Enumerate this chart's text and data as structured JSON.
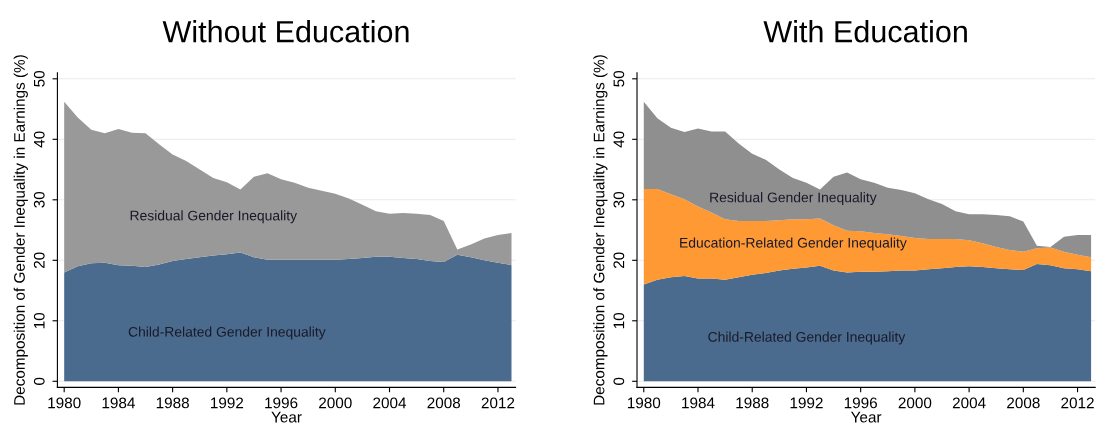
{
  "chart_data": [
    {
      "type": "area",
      "title": "Without Education",
      "xlabel": "Year",
      "ylabel": "Decomposition of Gender Inequality in Earnings (%)",
      "stacked": true,
      "grid": "y",
      "legend": false,
      "x": [
        1980,
        1981,
        1982,
        1983,
        1984,
        1985,
        1986,
        1987,
        1988,
        1989,
        1990,
        1991,
        1992,
        1993,
        1994,
        1995,
        1996,
        1997,
        1998,
        1999,
        2000,
        2001,
        2002,
        2003,
        2004,
        2005,
        2006,
        2007,
        2008,
        2009,
        2010,
        2011,
        2012,
        2013
      ],
      "xlim": [
        1979.5,
        2013.3
      ],
      "xticks": [
        1980,
        1984,
        1988,
        1992,
        1996,
        2000,
        2004,
        2008,
        2012
      ],
      "ylim": [
        -1,
        51
      ],
      "yticks": [
        0,
        10,
        20,
        30,
        40,
        50
      ],
      "series": [
        {
          "name": "Child-Related Gender Inequality",
          "color": "#4a6b8d",
          "values": [
            18.0,
            19.0,
            19.5,
            19.6,
            19.2,
            19.1,
            18.9,
            19.3,
            19.9,
            20.2,
            20.5,
            20.8,
            21.0,
            21.3,
            20.5,
            20.1,
            20.1,
            20.1,
            20.1,
            20.1,
            20.1,
            20.2,
            20.4,
            20.6,
            20.6,
            20.4,
            20.2,
            19.9,
            19.7,
            20.9,
            20.5,
            20.0,
            19.6,
            19.2
          ]
        },
        {
          "name": "Residual Gender Inequality",
          "color": "#999999",
          "values": [
            28.2,
            24.6,
            22.1,
            21.4,
            22.5,
            22.0,
            22.1,
            19.9,
            17.6,
            16.2,
            14.5,
            12.8,
            11.9,
            10.4,
            13.3,
            14.3,
            13.3,
            12.7,
            11.9,
            11.4,
            10.9,
            10.0,
            8.8,
            7.5,
            7.1,
            7.4,
            7.5,
            7.6,
            6.8,
            0.9,
            2.1,
            3.6,
            4.6,
            5.3
          ]
        }
      ]
    },
    {
      "type": "area",
      "title": "With Education",
      "xlabel": "Year",
      "ylabel": "Decomposition of Gender Inequality in Earnings (%)",
      "stacked": true,
      "grid": "y",
      "legend": false,
      "x": [
        1980,
        1981,
        1982,
        1983,
        1984,
        1985,
        1986,
        1987,
        1988,
        1989,
        1990,
        1991,
        1992,
        1993,
        1994,
        1995,
        1996,
        1997,
        1998,
        1999,
        2000,
        2001,
        2002,
        2003,
        2004,
        2005,
        2006,
        2007,
        2008,
        2009,
        2010,
        2011,
        2012,
        2013
      ],
      "xlim": [
        1979.5,
        2013.3
      ],
      "xticks": [
        1980,
        1984,
        1988,
        1992,
        1996,
        2000,
        2004,
        2008,
        2012
      ],
      "ylim": [
        -1,
        51
      ],
      "yticks": [
        0,
        10,
        20,
        30,
        40,
        50
      ],
      "series": [
        {
          "name": "Child-Related Gender Inequality",
          "color": "#4a6b8d",
          "values": [
            16.0,
            16.8,
            17.2,
            17.4,
            17.0,
            17.0,
            16.8,
            17.2,
            17.6,
            17.9,
            18.3,
            18.6,
            18.8,
            19.1,
            18.3,
            18.0,
            18.1,
            18.1,
            18.2,
            18.3,
            18.3,
            18.5,
            18.7,
            18.9,
            19.0,
            18.9,
            18.7,
            18.5,
            18.4,
            19.4,
            19.2,
            18.7,
            18.5,
            18.2
          ]
        },
        {
          "name": "Education-Related Gender Inequality",
          "color": "#ff9933",
          "values": [
            15.8,
            15.0,
            13.7,
            12.7,
            11.9,
            10.9,
            10.0,
            9.3,
            8.9,
            8.6,
            8.3,
            8.2,
            8.0,
            7.8,
            7.5,
            6.9,
            6.7,
            6.4,
            6.1,
            5.7,
            5.4,
            5.0,
            4.8,
            4.6,
            4.3,
            3.9,
            3.5,
            3.2,
            3.0,
            2.6,
            2.9,
            2.7,
            2.4,
            2.3
          ]
        },
        {
          "name": "Residual Gender Inequality",
          "color": "#8f8f8f",
          "values": [
            14.4,
            11.7,
            11.0,
            11.1,
            12.9,
            13.4,
            14.5,
            12.8,
            11.1,
            10.1,
            8.4,
            6.8,
            6.0,
            4.8,
            8.0,
            9.6,
            8.6,
            8.3,
            7.7,
            7.6,
            7.4,
            6.6,
            5.8,
            4.6,
            4.3,
            4.8,
            5.3,
            5.6,
            5.0,
            0.4,
            0.1,
            2.5,
            3.3,
            3.7
          ]
        }
      ]
    }
  ]
}
